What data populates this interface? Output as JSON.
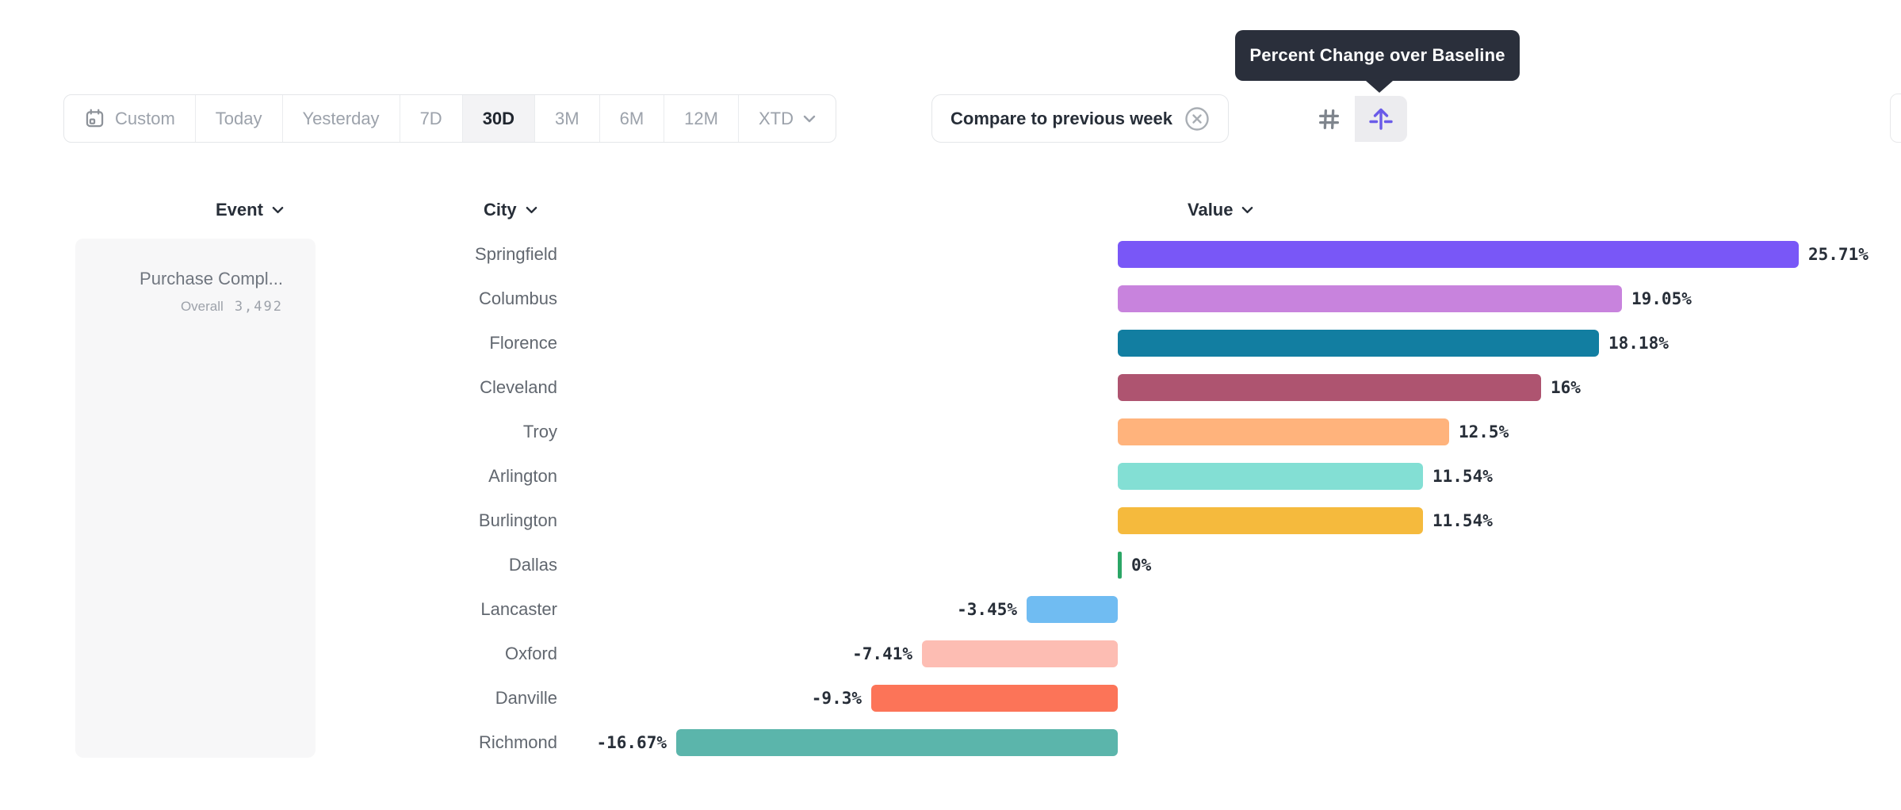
{
  "tooltip": {
    "text": "Percent Change over Baseline"
  },
  "toolbar": {
    "ranges": [
      {
        "label": "Custom",
        "selected": false,
        "icon": "calendar-icon"
      },
      {
        "label": "Today",
        "selected": false
      },
      {
        "label": "Yesterday",
        "selected": false
      },
      {
        "label": "7D",
        "selected": false
      },
      {
        "label": "30D",
        "selected": true
      },
      {
        "label": "3M",
        "selected": false
      },
      {
        "label": "6M",
        "selected": false
      },
      {
        "label": "12M",
        "selected": false
      },
      {
        "label": "XTD",
        "selected": false,
        "icon": "chevron-down-icon"
      }
    ],
    "compare_label": "Compare to previous week",
    "view_toggle": {
      "options": [
        "absolute-values",
        "percent-change-over-baseline"
      ],
      "selected": "percent-change-over-baseline",
      "accent_color": "#6A5BE8"
    }
  },
  "columns": {
    "event": "Event",
    "city": "City",
    "value": "Value"
  },
  "event_panel": {
    "event_name": "Purchase Compl...",
    "overall_label": "Overall",
    "overall_value": "3,492"
  },
  "chart_data": {
    "type": "bar",
    "orientation": "horizontal",
    "title": "Percent Change over Baseline",
    "value_unit": "percent",
    "baseline": 0,
    "xlim": [
      -16.67,
      25.71
    ],
    "categories": [
      "Springfield",
      "Columbus",
      "Florence",
      "Cleveland",
      "Troy",
      "Arlington",
      "Burlington",
      "Dallas",
      "Lancaster",
      "Oxford",
      "Danville",
      "Richmond"
    ],
    "rows": [
      {
        "city": "Springfield",
        "value": 25.71,
        "label": "25.71%",
        "color": "#7957F7"
      },
      {
        "city": "Columbus",
        "value": 19.05,
        "label": "19.05%",
        "color": "#C883DD"
      },
      {
        "city": "Florence",
        "value": 18.18,
        "label": "18.18%",
        "color": "#127EA1"
      },
      {
        "city": "Cleveland",
        "value": 16,
        "label": "16%",
        "color": "#AE5470"
      },
      {
        "city": "Troy",
        "value": 12.5,
        "label": "12.5%",
        "color": "#FFB37C"
      },
      {
        "city": "Arlington",
        "value": 11.54,
        "label": "11.54%",
        "color": "#83DFD4"
      },
      {
        "city": "Burlington",
        "value": 11.54,
        "label": "11.54%",
        "color": "#F5BA3D"
      },
      {
        "city": "Dallas",
        "value": 0,
        "label": "0%",
        "color": "#2BA666"
      },
      {
        "city": "Lancaster",
        "value": -3.45,
        "label": "-3.45%",
        "color": "#70BCF2"
      },
      {
        "city": "Oxford",
        "value": -7.41,
        "label": "-7.41%",
        "color": "#FDBDB3"
      },
      {
        "city": "Danville",
        "value": -9.3,
        "label": "-9.3%",
        "color": "#FC7458"
      },
      {
        "city": "Richmond",
        "value": -16.67,
        "label": "-16.67%",
        "color": "#5BB5AB"
      }
    ]
  }
}
